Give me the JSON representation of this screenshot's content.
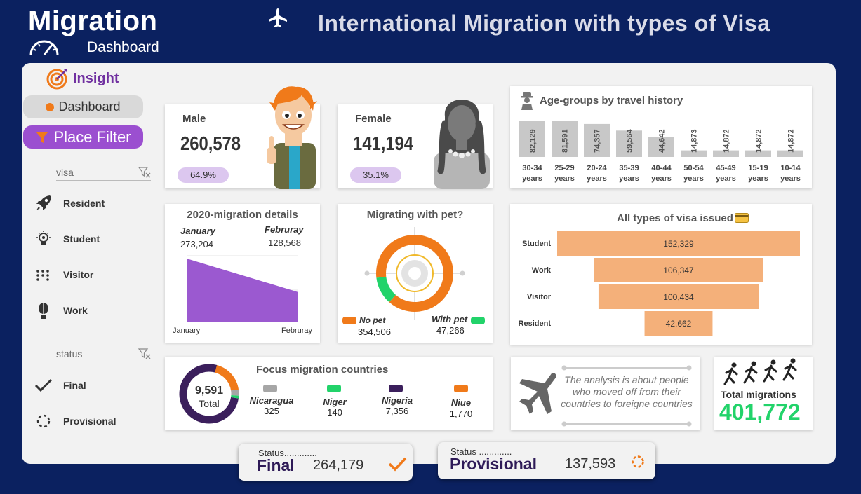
{
  "header": {
    "app_title": "Migration",
    "dashboard_label": "Dashboard",
    "main_title": "International Migration with types of Visa"
  },
  "sidebar": {
    "insight_label": "Insight",
    "dashboard_button": "Dashboard",
    "filter_button": "Place Filter",
    "visa_slicer": {
      "header": "visa",
      "items": [
        {
          "label": "Resident",
          "icon": "rocket-icon"
        },
        {
          "label": "Student",
          "icon": "lightbulb-icon"
        },
        {
          "label": "Visitor",
          "icon": "dots-icon"
        },
        {
          "label": "Work",
          "icon": "balloon-icon"
        }
      ]
    },
    "status_slicer": {
      "header": "status",
      "items": [
        {
          "label": "Final",
          "icon": "check-icon"
        },
        {
          "label": "Provisional",
          "icon": "loading-icon"
        }
      ]
    }
  },
  "gender": {
    "male": {
      "label": "Male",
      "value": "260,578",
      "pct": "64.9%"
    },
    "female": {
      "label": "Female",
      "value": "141,194",
      "pct": "35.1%"
    }
  },
  "age_groups": {
    "title": "Age-groups by travel history",
    "chart_data": {
      "type": "bar",
      "categories": [
        "30-34 years",
        "25-29 years",
        "20-24 years",
        "35-39 years",
        "40-44 years",
        "50-54 years",
        "45-49 years",
        "15-19 years",
        "10-14 years"
      ],
      "values": [
        82129,
        81591,
        74357,
        59564,
        44642,
        14873,
        14872,
        14872,
        14872
      ],
      "value_labels": [
        "82,129",
        "81,591",
        "74,357",
        "59,564",
        "44,642",
        "14,873",
        "14,872",
        "14,872",
        "14,872"
      ],
      "bar_color": "#c8c8c8"
    }
  },
  "details_2020": {
    "title": "2020-migration details",
    "month1": {
      "label": "January",
      "value": "273,204"
    },
    "month2": {
      "label": "Februray",
      "value": "128,568"
    },
    "axis_left": "January",
    "axis_right": "Februray",
    "chart_data": {
      "type": "area",
      "categories": [
        "January",
        "Februray"
      ],
      "values": [
        273204,
        128568
      ],
      "color": "#9b59d0"
    }
  },
  "pet": {
    "title": "Migrating with pet?",
    "no_pet": {
      "label": "No pet",
      "value": "354,506",
      "color": "#f07a1a"
    },
    "with_pet": {
      "label": "With pet",
      "value": "47,266",
      "color": "#22d36a"
    },
    "chart_data": {
      "type": "pie",
      "categories": [
        "No pet",
        "With pet"
      ],
      "values": [
        354506,
        47266
      ]
    }
  },
  "visa_types": {
    "title": "All types of visa issued",
    "chart_data": {
      "type": "bar",
      "orientation": "horizontal-funnel",
      "categories": [
        "Student",
        "Work",
        "Visitor",
        "Resident"
      ],
      "values": [
        152329,
        106347,
        100434,
        42662
      ],
      "value_labels": [
        "152,329",
        "106,347",
        "100,434",
        "42,662"
      ],
      "bar_color": "#f4b07a"
    }
  },
  "focus": {
    "title": "Focus migration countries",
    "total_value": "9,591",
    "total_label": "Total",
    "countries": [
      {
        "name": "Nicaragua",
        "value": "325",
        "color": "#a6a6a6"
      },
      {
        "name": "Niger",
        "value": "140",
        "color": "#22d36a"
      },
      {
        "name": "Nigeria",
        "value": "7,356",
        "color": "#3b1f5c"
      },
      {
        "name": "Niue",
        "value": "1,770",
        "color": "#f07a1a"
      }
    ],
    "chart_data": {
      "type": "pie",
      "categories": [
        "Nicaragua",
        "Niger",
        "Nigeria",
        "Niue"
      ],
      "values": [
        325,
        140,
        7356,
        1770
      ]
    }
  },
  "note": {
    "text": "The analysis is about people who moved off from their countries to foreigne countries"
  },
  "total": {
    "label": "Total migrations",
    "value": "401,772",
    "color": "#22d36a"
  },
  "status": {
    "final": {
      "small": "Status.............",
      "big": "Final",
      "value": "264,179"
    },
    "provisional": {
      "small": "Status .............",
      "big": "Provisional",
      "value": "137,593"
    }
  },
  "colors": {
    "background": "#0b2160",
    "panel": "#f2f2f2",
    "accent_purple": "#9b4fd0",
    "accent_orange": "#f07a1a",
    "accent_green": "#22d36a"
  }
}
